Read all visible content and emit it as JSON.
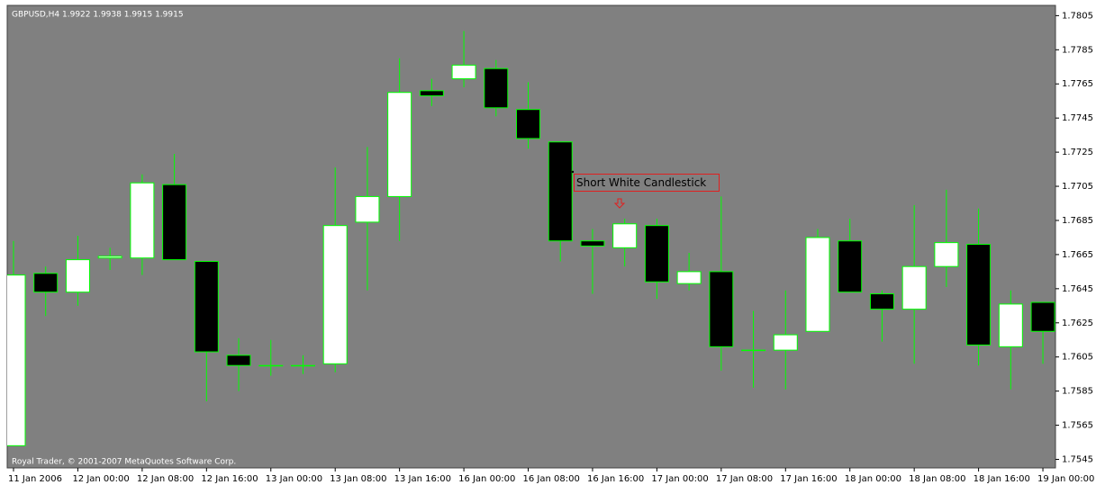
{
  "chart_data": {
    "type": "candlestick",
    "title": "GBPUSD,H4  1.9922 1.9938 1.9915 1.9915",
    "footer": "Royal Trader, © 2001-2007 MetaQuotes Software Corp.",
    "annotation": "Short White Candlestick",
    "categories": [
      "11 Jan 2006",
      null,
      "12 Jan 00:00",
      null,
      "12 Jan 08:00",
      null,
      "12 Jan 16:00",
      null,
      "13 Jan 00:00",
      null,
      "13 Jan 08:00",
      null,
      "13 Jan 16:00",
      null,
      "16 Jan 00:00",
      null,
      "16 Jan 08:00",
      null,
      "16 Jan 16:00",
      null,
      "17 Jan 00:00",
      null,
      "17 Jan 08:00",
      null,
      "17 Jan 16:00",
      null,
      "18 Jan 00:00",
      null,
      "18 Jan 08:00",
      null,
      "18 Jan 16:00",
      null,
      "19 Jan 00:00"
    ],
    "open": [
      1.7553,
      1.7654,
      1.7643,
      1.7663,
      1.7663,
      1.7706,
      1.7661,
      1.7606,
      1.76,
      1.76,
      1.7601,
      1.7684,
      1.7699,
      1.7761,
      1.7768,
      1.7774,
      1.775,
      1.7731,
      1.7673,
      1.7669,
      1.7682,
      1.7648,
      1.7655,
      1.7609,
      1.7609,
      1.762,
      1.7673,
      1.7642,
      1.7633,
      1.7658,
      1.7671,
      1.7611,
      1.7637
    ],
    "high": [
      1.7673,
      1.7658,
      1.7676,
      1.7669,
      1.7712,
      1.7724,
      1.7661,
      1.7616,
      1.7615,
      1.7606,
      1.7716,
      1.7728,
      1.778,
      1.7768,
      1.7796,
      1.7779,
      1.7766,
      1.7731,
      1.768,
      1.7686,
      1.7686,
      1.7666,
      1.7699,
      1.7632,
      1.7644,
      1.768,
      1.7686,
      1.7644,
      1.7694,
      1.7703,
      1.7692,
      1.7644,
      1.7637
    ],
    "low": [
      1.7553,
      1.7629,
      1.7635,
      1.7656,
      1.7653,
      1.7662,
      1.7579,
      1.7585,
      1.7594,
      1.7595,
      1.7596,
      1.7644,
      1.7673,
      1.7752,
      1.7763,
      1.7746,
      1.7727,
      1.7661,
      1.7642,
      1.7658,
      1.7639,
      1.7644,
      1.7597,
      1.7587,
      1.7586,
      1.762,
      1.7643,
      1.7614,
      1.7601,
      1.7646,
      1.76,
      1.7586,
      1.7601
    ],
    "close": [
      1.7653,
      1.7643,
      1.7662,
      1.7664,
      1.7707,
      1.7662,
      1.7608,
      1.76,
      1.76,
      1.76,
      1.7682,
      1.7699,
      1.776,
      1.7758,
      1.7776,
      1.7751,
      1.7733,
      1.7673,
      1.767,
      1.7683,
      1.7649,
      1.7655,
      1.7611,
      1.7609,
      1.7618,
      1.7675,
      1.7643,
      1.7633,
      1.7658,
      1.7672,
      1.7612,
      1.7636,
      1.762
    ],
    "up_color": "#ffffff",
    "down_color": "#000000",
    "wick_color": "#00ff00",
    "background": "#808080",
    "ylim": [
      1.754,
      1.7811
    ],
    "yticks": [
      1.7805,
      1.7785,
      1.7765,
      1.7745,
      1.7725,
      1.7705,
      1.7685,
      1.7665,
      1.7645,
      1.7625,
      1.7605,
      1.7585,
      1.7565,
      1.7545
    ]
  }
}
